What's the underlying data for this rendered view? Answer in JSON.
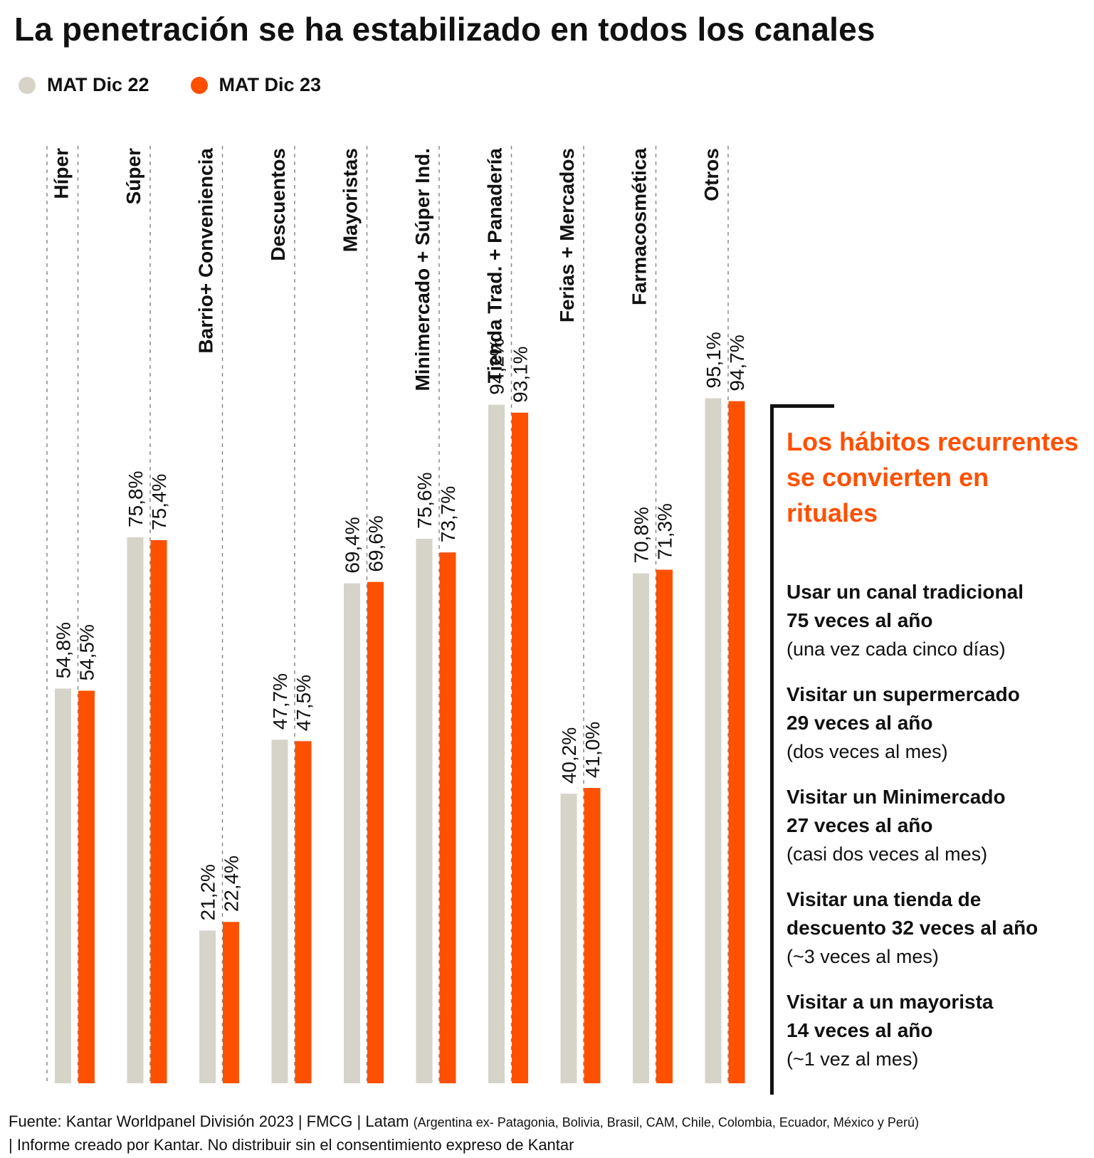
{
  "title": "La penetración se ha estabilizado en todos los canales",
  "legend": [
    {
      "label": "MAT Dic 22",
      "color": "#d6d3c9"
    },
    {
      "label": "MAT Dic 23",
      "color": "#ff5000"
    }
  ],
  "chart_data": {
    "type": "bar",
    "title": "La penetración se ha estabilizado en todos los canales",
    "xlabel": "",
    "ylabel": "",
    "ylim": [
      0,
      100
    ],
    "grid": "vertical dashed separators",
    "legend_position": "top-left",
    "categories": [
      "Híper",
      "Súper",
      "Barrio+ Conveniencia",
      "Descuentos",
      "Mayoristas",
      "Minimercado + Súper Ind.",
      "Tienda Trad. + Panadería",
      "Ferias + Mercados",
      "Farmacosmética",
      "Otros"
    ],
    "series": [
      {
        "name": "MAT Dic 22",
        "color": "#d6d3c9",
        "values": [
          54.8,
          75.8,
          21.2,
          47.7,
          69.4,
          75.6,
          94.2,
          40.2,
          70.8,
          95.1
        ],
        "labels": [
          "54,8%",
          "75,8%",
          "21,2%",
          "47,7%",
          "69,4%",
          "75,6%",
          "94,2%",
          "40,2%",
          "70,8%",
          "95,1%"
        ]
      },
      {
        "name": "MAT Dic 23",
        "color": "#ff5000",
        "values": [
          54.5,
          75.4,
          22.4,
          47.5,
          69.6,
          73.7,
          93.1,
          41.0,
          71.3,
          94.7
        ],
        "labels": [
          "54,5%",
          "75,4%",
          "22,4%",
          "47,5%",
          "69,6%",
          "73,7%",
          "93,1%",
          "41,0%",
          "71,3%",
          "94,7%"
        ]
      }
    ]
  },
  "side_panel": {
    "heading": "Los hábitos recurrentes se convierten en rituales",
    "heading_color": "#ff5000",
    "habits": [
      {
        "line1": "Usar un canal tradicional",
        "line2": "75 veces al año",
        "note": "(una vez cada cinco días)"
      },
      {
        "line1": "Visitar un supermercado",
        "line2": "29 veces al año",
        "note": "(dos veces al mes)"
      },
      {
        "line1": "Visitar un Minimercado",
        "line2": "27 veces al año",
        "note": "(casi dos veces al mes)"
      },
      {
        "line1": "Visitar una tienda de",
        "line2": "descuento 32 veces al año",
        "note": "(~3 veces al mes)"
      },
      {
        "line1": "Visitar a un mayorista",
        "line2": "14 veces al año",
        "note": "(~1 vez al mes)"
      }
    ]
  },
  "footer": {
    "source": "Fuente: Kantar Worldpanel División 2023 | FMCG | Latam",
    "countries": "(Argentina ex- Patagonia, Bolivia, Brasil, CAM, Chile, Colombia, Ecuador, México y Perú)",
    "disclaimer": "| Informe creado por Kantar. No distribuir sin el consentimiento expreso de Kantar"
  }
}
